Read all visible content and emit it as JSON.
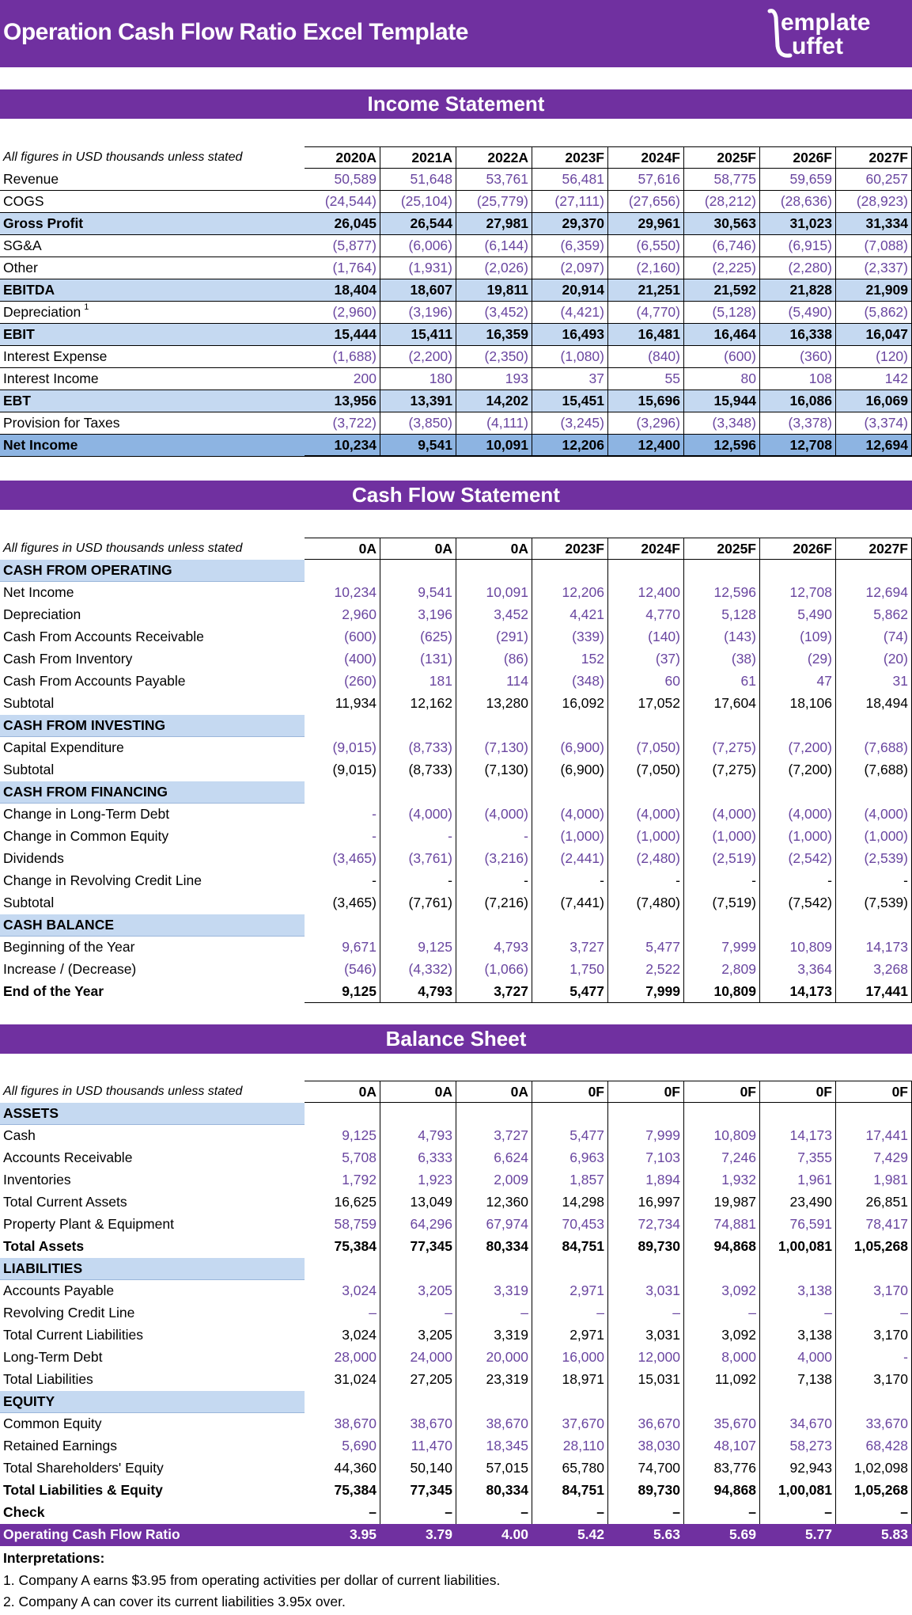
{
  "title": "Operation Cash Flow Ratio Excel Template",
  "logo": "templatebuffet",
  "colors": {
    "brand": "#7030a0",
    "highlight": "#c5d9f1",
    "net": "#8db4e2",
    "input_text": "#6a46a0"
  },
  "note": "All figures in USD thousands unless stated",
  "income": {
    "title": "Income Statement",
    "years": [
      "2020A",
      "2021A",
      "2022A",
      "2023F",
      "2024F",
      "2025F",
      "2026F",
      "2027F"
    ],
    "rows": [
      {
        "label": "Revenue",
        "style": "input",
        "values": [
          "50,589",
          "51,648",
          "53,761",
          "56,481",
          "57,616",
          "58,775",
          "59,659",
          "60,257"
        ]
      },
      {
        "label": "COGS",
        "style": "input",
        "values": [
          "(24,544)",
          "(25,104)",
          "(25,779)",
          "(27,111)",
          "(27,656)",
          "(28,212)",
          "(28,636)",
          "(28,923)"
        ]
      },
      {
        "label": "Gross Profit",
        "style": "bold",
        "values": [
          "26,045",
          "26,544",
          "27,981",
          "29,370",
          "29,961",
          "30,563",
          "31,023",
          "31,334"
        ]
      },
      {
        "label": "SG&A",
        "style": "input",
        "values": [
          "(5,877)",
          "(6,006)",
          "(6,144)",
          "(6,359)",
          "(6,550)",
          "(6,746)",
          "(6,915)",
          "(7,088)"
        ]
      },
      {
        "label": "Other",
        "style": "input",
        "values": [
          "(1,764)",
          "(1,931)",
          "(2,026)",
          "(2,097)",
          "(2,160)",
          "(2,225)",
          "(2,280)",
          "(2,337)"
        ]
      },
      {
        "label": "EBITDA",
        "style": "bold",
        "values": [
          "18,404",
          "18,607",
          "19,811",
          "20,914",
          "21,251",
          "21,592",
          "21,828",
          "21,909"
        ]
      },
      {
        "label": "Depreciation",
        "sup": "1",
        "style": "input",
        "values": [
          "(2,960)",
          "(3,196)",
          "(3,452)",
          "(4,421)",
          "(4,770)",
          "(5,128)",
          "(5,490)",
          "(5,862)"
        ]
      },
      {
        "label": "EBIT",
        "style": "bold",
        "values": [
          "15,444",
          "15,411",
          "16,359",
          "16,493",
          "16,481",
          "16,464",
          "16,338",
          "16,047"
        ]
      },
      {
        "label": "Interest Expense",
        "style": "input",
        "values": [
          "(1,688)",
          "(2,200)",
          "(2,350)",
          "(1,080)",
          "(840)",
          "(600)",
          "(360)",
          "(120)"
        ]
      },
      {
        "label": "Interest Income",
        "style": "input",
        "values": [
          "200",
          "180",
          "193",
          "37",
          "55",
          "80",
          "108",
          "142"
        ]
      },
      {
        "label": "EBT",
        "style": "bold",
        "values": [
          "13,956",
          "13,391",
          "14,202",
          "15,451",
          "15,696",
          "15,944",
          "16,086",
          "16,069"
        ]
      },
      {
        "label": "Provision for Taxes",
        "style": "input",
        "values": [
          "(3,722)",
          "(3,850)",
          "(4,111)",
          "(3,245)",
          "(3,296)",
          "(3,348)",
          "(3,378)",
          "(3,374)"
        ]
      },
      {
        "label": "Net Income",
        "style": "net",
        "values": [
          "10,234",
          "9,541",
          "10,091",
          "12,206",
          "12,400",
          "12,596",
          "12,708",
          "12,694"
        ]
      }
    ]
  },
  "cashflow": {
    "title": "Cash Flow Statement",
    "years": [
      "0A",
      "0A",
      "0A",
      "2023F",
      "2024F",
      "2025F",
      "2026F",
      "2027F"
    ],
    "rows": [
      {
        "label": "CASH FROM OPERATING",
        "style": "section"
      },
      {
        "label": "Net Income",
        "style": "input",
        "values": [
          "10,234",
          "9,541",
          "10,091",
          "12,206",
          "12,400",
          "12,596",
          "12,708",
          "12,694"
        ]
      },
      {
        "label": "Depreciation",
        "style": "input",
        "values": [
          "2,960",
          "3,196",
          "3,452",
          "4,421",
          "4,770",
          "5,128",
          "5,490",
          "5,862"
        ]
      },
      {
        "label": "Cash From Accounts Receivable",
        "style": "input",
        "values": [
          "(600)",
          "(625)",
          "(291)",
          "(339)",
          "(140)",
          "(143)",
          "(109)",
          "(74)"
        ]
      },
      {
        "label": "Cash From Inventory",
        "style": "input",
        "values": [
          "(400)",
          "(131)",
          "(86)",
          "152",
          "(37)",
          "(38)",
          "(29)",
          "(20)"
        ]
      },
      {
        "label": "Cash From Accounts Payable",
        "style": "input",
        "values": [
          "(260)",
          "181",
          "114",
          "(348)",
          "60",
          "61",
          "47",
          "31"
        ]
      },
      {
        "label": "Subtotal",
        "style": "plain",
        "values": [
          "11,934",
          "12,162",
          "13,280",
          "16,092",
          "17,052",
          "17,604",
          "18,106",
          "18,494"
        ]
      },
      {
        "label": "CASH FROM INVESTING",
        "style": "section"
      },
      {
        "label": "Capital Expenditure",
        "style": "input",
        "values": [
          "(9,015)",
          "(8,733)",
          "(7,130)",
          "(6,900)",
          "(7,050)",
          "(7,275)",
          "(7,200)",
          "(7,688)"
        ]
      },
      {
        "label": "Subtotal",
        "style": "plain",
        "values": [
          "(9,015)",
          "(8,733)",
          "(7,130)",
          "(6,900)",
          "(7,050)",
          "(7,275)",
          "(7,200)",
          "(7,688)"
        ]
      },
      {
        "label": "CASH FROM FINANCING",
        "style": "section"
      },
      {
        "label": "Change in Long-Term Debt",
        "style": "input",
        "values": [
          "-",
          "(4,000)",
          "(4,000)",
          "(4,000)",
          "(4,000)",
          "(4,000)",
          "(4,000)",
          "(4,000)"
        ]
      },
      {
        "label": "Change in Common Equity",
        "style": "input",
        "values": [
          "-",
          "-",
          "-",
          "(1,000)",
          "(1,000)",
          "(1,000)",
          "(1,000)",
          "(1,000)"
        ]
      },
      {
        "label": "Dividends",
        "style": "input",
        "values": [
          "(3,465)",
          "(3,761)",
          "(3,216)",
          "(2,441)",
          "(2,480)",
          "(2,519)",
          "(2,542)",
          "(2,539)"
        ]
      },
      {
        "label": "Change in Revolving Credit Line",
        "style": "plain",
        "values": [
          "-",
          "-",
          "-",
          "-",
          "-",
          "-",
          "-",
          "-"
        ]
      },
      {
        "label": "Subtotal",
        "style": "plain",
        "values": [
          "(3,465)",
          "(7,761)",
          "(7,216)",
          "(7,441)",
          "(7,480)",
          "(7,519)",
          "(7,542)",
          "(7,539)"
        ]
      },
      {
        "label": "CASH BALANCE",
        "style": "section"
      },
      {
        "label": "Beginning of the Year",
        "style": "input",
        "values": [
          "9,671",
          "9,125",
          "4,793",
          "3,727",
          "5,477",
          "7,999",
          "10,809",
          "14,173"
        ]
      },
      {
        "label": "Increase / (Decrease)",
        "style": "input",
        "values": [
          "(546)",
          "(4,332)",
          "(1,066)",
          "1,750",
          "2,522",
          "2,809",
          "3,364",
          "3,268"
        ]
      },
      {
        "label": "End of the Year",
        "style": "tot",
        "values": [
          "9,125",
          "4,793",
          "3,727",
          "5,477",
          "7,999",
          "10,809",
          "14,173",
          "17,441"
        ]
      }
    ]
  },
  "balance": {
    "title": "Balance Sheet",
    "years": [
      "0A",
      "0A",
      "0A",
      "0F",
      "0F",
      "0F",
      "0F",
      "0F"
    ],
    "rows": [
      {
        "label": "ASSETS",
        "style": "section"
      },
      {
        "label": "Cash",
        "style": "input",
        "values": [
          "9,125",
          "4,793",
          "3,727",
          "5,477",
          "7,999",
          "10,809",
          "14,173",
          "17,441"
        ]
      },
      {
        "label": "Accounts Receivable",
        "style": "input",
        "values": [
          "5,708",
          "6,333",
          "6,624",
          "6,963",
          "7,103",
          "7,246",
          "7,355",
          "7,429"
        ]
      },
      {
        "label": "Inventories",
        "style": "input",
        "values": [
          "1,792",
          "1,923",
          "2,009",
          "1,857",
          "1,894",
          "1,932",
          "1,961",
          "1,981"
        ]
      },
      {
        "label": "Total Current Assets",
        "style": "plain",
        "values": [
          "16,625",
          "13,049",
          "12,360",
          "14,298",
          "16,997",
          "19,987",
          "23,490",
          "26,851"
        ]
      },
      {
        "label": "Property Plant & Equipment",
        "style": "input",
        "values": [
          "58,759",
          "64,296",
          "67,974",
          "70,453",
          "72,734",
          "74,881",
          "76,591",
          "78,417"
        ]
      },
      {
        "label": "Total Assets",
        "style": "tot",
        "values": [
          "75,384",
          "77,345",
          "80,334",
          "84,751",
          "89,730",
          "94,868",
          "1,00,081",
          "1,05,268"
        ]
      },
      {
        "label": "LIABILITIES",
        "style": "section"
      },
      {
        "label": "Accounts Payable",
        "style": "input",
        "values": [
          "3,024",
          "3,205",
          "3,319",
          "2,971",
          "3,031",
          "3,092",
          "3,138",
          "3,170"
        ]
      },
      {
        "label": "Revolving Credit Line",
        "style": "input",
        "values": [
          "–",
          "–",
          "–",
          "–",
          "–",
          "–",
          "–",
          "–"
        ]
      },
      {
        "label": "Total Current Liabilities",
        "style": "plain",
        "values": [
          "3,024",
          "3,205",
          "3,319",
          "2,971",
          "3,031",
          "3,092",
          "3,138",
          "3,170"
        ]
      },
      {
        "label": "Long-Term Debt",
        "style": "input",
        "values": [
          "28,000",
          "24,000",
          "20,000",
          "16,000",
          "12,000",
          "8,000",
          "4,000",
          "-"
        ]
      },
      {
        "label": "Total Liabilities",
        "style": "plain",
        "values": [
          "31,024",
          "27,205",
          "23,319",
          "18,971",
          "15,031",
          "11,092",
          "7,138",
          "3,170"
        ]
      },
      {
        "label": "EQUITY",
        "style": "section"
      },
      {
        "label": "Common Equity",
        "style": "input",
        "values": [
          "38,670",
          "38,670",
          "38,670",
          "37,670",
          "36,670",
          "35,670",
          "34,670",
          "33,670"
        ]
      },
      {
        "label": "Retained Earnings",
        "style": "input",
        "values": [
          "5,690",
          "11,470",
          "18,345",
          "28,110",
          "38,030",
          "48,107",
          "58,273",
          "68,428"
        ]
      },
      {
        "label": "Total Shareholders' Equity",
        "style": "plain",
        "values": [
          "44,360",
          "50,140",
          "57,015",
          "65,780",
          "74,700",
          "83,776",
          "92,943",
          "1,02,098"
        ]
      },
      {
        "label": "Total Liabilities & Equity",
        "style": "tot",
        "values": [
          "75,384",
          "77,345",
          "80,334",
          "84,751",
          "89,730",
          "94,868",
          "1,00,081",
          "1,05,268"
        ]
      },
      {
        "label": "Check",
        "style": "tot",
        "values": [
          "–",
          "–",
          "–",
          "–",
          "–",
          "–",
          "–",
          "–"
        ]
      },
      {
        "label": "Operating Cash Flow Ratio",
        "style": "ratio",
        "values": [
          "3.95",
          "3.79",
          "4.00",
          "5.42",
          "5.63",
          "5.69",
          "5.77",
          "5.83"
        ]
      }
    ]
  },
  "interpretations": {
    "title": "Interpretations:",
    "lines": [
      "1. Company A earns $3.95 from operating activities per dollar of current liabilities.",
      "2. Company A can cover its current liabilities 3.95x over."
    ]
  }
}
